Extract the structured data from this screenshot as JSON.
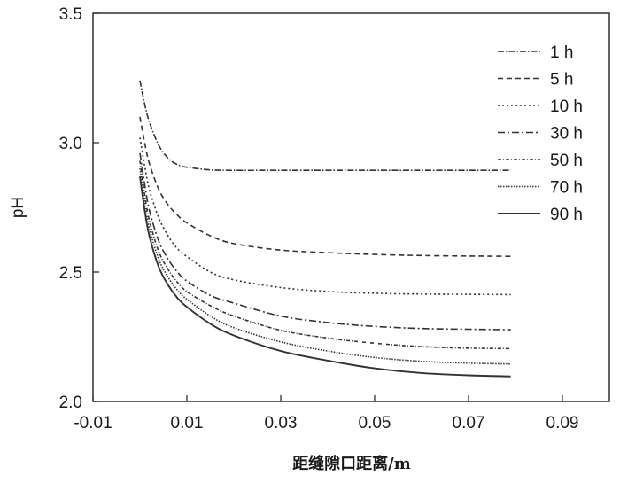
{
  "chart_data": {
    "type": "line",
    "xlabel": "距缝隙口距离/m",
    "ylabel": "pH",
    "xlim": [
      -0.01,
      0.1
    ],
    "ylim": [
      2.0,
      3.5
    ],
    "xticks": [
      -0.01,
      0.01,
      0.03,
      0.05,
      0.07,
      0.09
    ],
    "xtick_labels": [
      "-0.01",
      "0.01",
      "0.03",
      "0.05",
      "0.07",
      "0.09"
    ],
    "yticks": [
      2.0,
      2.5,
      3.0,
      3.5
    ],
    "ytick_labels": [
      "2.0",
      "2.5",
      "3.0",
      "3.5"
    ],
    "grid": false,
    "legend_position": "top-right",
    "line_color": "#333333",
    "x": [
      0.0,
      0.001,
      0.002,
      0.004,
      0.006,
      0.008,
      0.01,
      0.015,
      0.02,
      0.03,
      0.04,
      0.05,
      0.06,
      0.07,
      0.079
    ],
    "series": [
      {
        "name": "1 h",
        "dash": "7 2 1.5 2",
        "values": [
          3.24,
          3.15,
          3.08,
          2.99,
          2.94,
          2.915,
          2.905,
          2.895,
          2.893,
          2.893,
          2.893,
          2.893,
          2.893,
          2.893,
          2.893
        ]
      },
      {
        "name": "5 h",
        "dash": "6 4",
        "values": [
          3.1,
          3.0,
          2.92,
          2.82,
          2.76,
          2.72,
          2.69,
          2.64,
          2.61,
          2.585,
          2.575,
          2.568,
          2.564,
          2.562,
          2.561
        ]
      },
      {
        "name": "10 h",
        "dash": "2 3",
        "values": [
          3.02,
          2.91,
          2.82,
          2.71,
          2.64,
          2.59,
          2.56,
          2.5,
          2.47,
          2.44,
          2.425,
          2.418,
          2.415,
          2.414,
          2.413
        ]
      },
      {
        "name": "30 h",
        "dash": "8 3 2 3",
        "values": [
          2.96,
          2.84,
          2.74,
          2.62,
          2.55,
          2.5,
          2.465,
          2.41,
          2.38,
          2.33,
          2.305,
          2.29,
          2.282,
          2.279,
          2.277
        ]
      },
      {
        "name": "50 h",
        "dash": "4 2 1 2",
        "values": [
          2.93,
          2.8,
          2.7,
          2.58,
          2.51,
          2.46,
          2.425,
          2.37,
          2.33,
          2.275,
          2.245,
          2.225,
          2.212,
          2.206,
          2.204
        ]
      },
      {
        "name": "70 h",
        "dash": "1.5 1.5",
        "values": [
          2.9,
          2.77,
          2.67,
          2.55,
          2.48,
          2.43,
          2.395,
          2.33,
          2.285,
          2.23,
          2.195,
          2.17,
          2.155,
          2.148,
          2.145
        ]
      },
      {
        "name": "90 h",
        "dash": "",
        "values": [
          2.87,
          2.74,
          2.64,
          2.52,
          2.45,
          2.4,
          2.365,
          2.3,
          2.255,
          2.195,
          2.158,
          2.128,
          2.11,
          2.101,
          2.097
        ]
      }
    ]
  }
}
